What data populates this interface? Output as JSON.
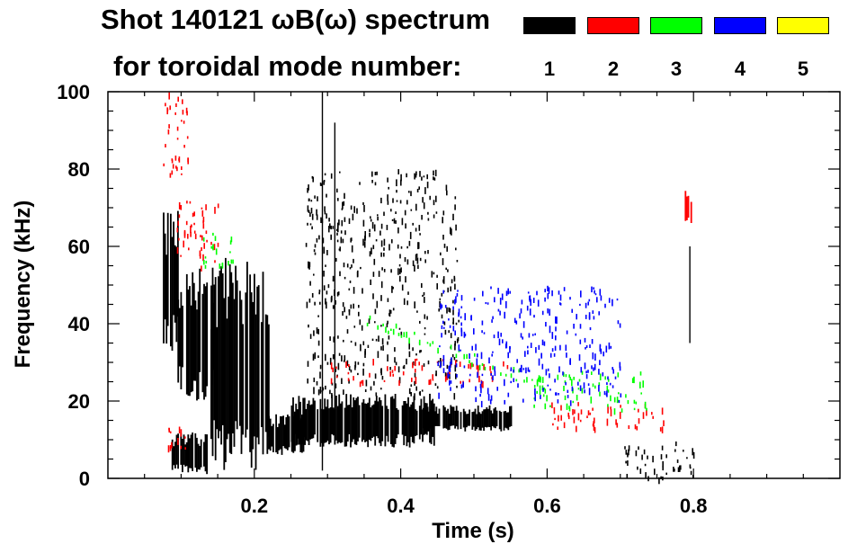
{
  "title_line1": "Shot 140121 ωB(ω) spectrum",
  "title_line2": "for toroidal mode number:",
  "legend": [
    {
      "mode": "1",
      "color": "#000000"
    },
    {
      "mode": "2",
      "color": "#ff0000"
    },
    {
      "mode": "3",
      "color": "#00ff00"
    },
    {
      "mode": "4",
      "color": "#0000ff"
    },
    {
      "mode": "5",
      "color": "#ffff00"
    }
  ],
  "chart_data": {
    "type": "heatmap",
    "title": "Shot 140121 ωB(ω) spectrum",
    "xlabel": "Time (s)",
    "ylabel": "Frequency (kHz)",
    "xlim": [
      0.0,
      1.0
    ],
    "ylim": [
      0,
      100
    ],
    "xticks": [
      {
        "value": 0.2,
        "label": "0.2"
      },
      {
        "value": 0.4,
        "label": "0.4"
      },
      {
        "value": 0.6,
        "label": "0.6"
      },
      {
        "value": 0.8,
        "label": "0.8"
      }
    ],
    "yticks": [
      {
        "value": 0,
        "label": "0"
      },
      {
        "value": 20,
        "label": "20"
      },
      {
        "value": 40,
        "label": "40"
      },
      {
        "value": 60,
        "label": "60"
      },
      {
        "value": 80,
        "label": "80"
      },
      {
        "value": 100,
        "label": "100"
      }
    ],
    "regions": [
      {
        "mode": 1,
        "kind": "band",
        "t0": 0.075,
        "t1": 0.095,
        "f0": 33,
        "f1": 70
      },
      {
        "mode": 1,
        "kind": "band",
        "t0": 0.095,
        "t1": 0.145,
        "f0": 20,
        "f1": 56
      },
      {
        "mode": 1,
        "kind": "band",
        "t0": 0.085,
        "t1": 0.135,
        "f0": 1,
        "f1": 12
      },
      {
        "mode": 1,
        "kind": "band",
        "t0": 0.215,
        "t1": 0.27,
        "f0": 6,
        "f1": 17
      },
      {
        "mode": 1,
        "kind": "band",
        "t0": 0.25,
        "t1": 0.445,
        "f0": 8,
        "f1": 22
      },
      {
        "mode": 1,
        "kind": "band",
        "t0": 0.43,
        "t1": 0.55,
        "f0": 12,
        "f1": 19
      },
      {
        "mode": 1,
        "kind": "band",
        "t0": 0.14,
        "t1": 0.22,
        "f0": 2,
        "f1": 58
      },
      {
        "mode": 1,
        "kind": "line",
        "t": 0.293,
        "f0": 2,
        "f1": 100
      },
      {
        "mode": 1,
        "kind": "line",
        "t": 0.31,
        "f0": 10,
        "f1": 92
      },
      {
        "mode": 1,
        "kind": "scatter",
        "t0": 0.27,
        "t1": 0.48,
        "f0": 22,
        "f1": 80
      },
      {
        "mode": 1,
        "kind": "scatter",
        "t0": 0.7,
        "t1": 0.8,
        "f0": 0,
        "f1": 10
      },
      {
        "mode": 1,
        "kind": "line",
        "t": 0.795,
        "f0": 35,
        "f1": 60
      },
      {
        "mode": 2,
        "kind": "scatter",
        "t0": 0.075,
        "t1": 0.11,
        "f0": 78,
        "f1": 100
      },
      {
        "mode": 2,
        "kind": "scatter",
        "t0": 0.09,
        "t1": 0.15,
        "f0": 55,
        "f1": 72
      },
      {
        "mode": 2,
        "kind": "scatter",
        "t0": 0.08,
        "t1": 0.11,
        "f0": 7,
        "f1": 14
      },
      {
        "mode": 2,
        "kind": "scatter",
        "t0": 0.3,
        "t1": 0.55,
        "f0": 25,
        "f1": 31
      },
      {
        "mode": 2,
        "kind": "scatter",
        "t0": 0.6,
        "t1": 0.76,
        "f0": 13,
        "f1": 20
      },
      {
        "mode": 2,
        "kind": "band",
        "t0": 0.788,
        "t1": 0.796,
        "f0": 65,
        "f1": 75
      },
      {
        "mode": 3,
        "kind": "trend",
        "t0": 0.35,
        "t1": 0.6,
        "f0": 42,
        "f1": 24
      },
      {
        "mode": 3,
        "kind": "scatter",
        "t0": 0.13,
        "t1": 0.17,
        "f0": 55,
        "f1": 64
      },
      {
        "mode": 3,
        "kind": "scatter",
        "t0": 0.58,
        "t1": 0.74,
        "f0": 18,
        "f1": 28
      },
      {
        "mode": 4,
        "kind": "scatter",
        "t0": 0.45,
        "t1": 0.7,
        "f0": 20,
        "f1": 50
      }
    ]
  }
}
